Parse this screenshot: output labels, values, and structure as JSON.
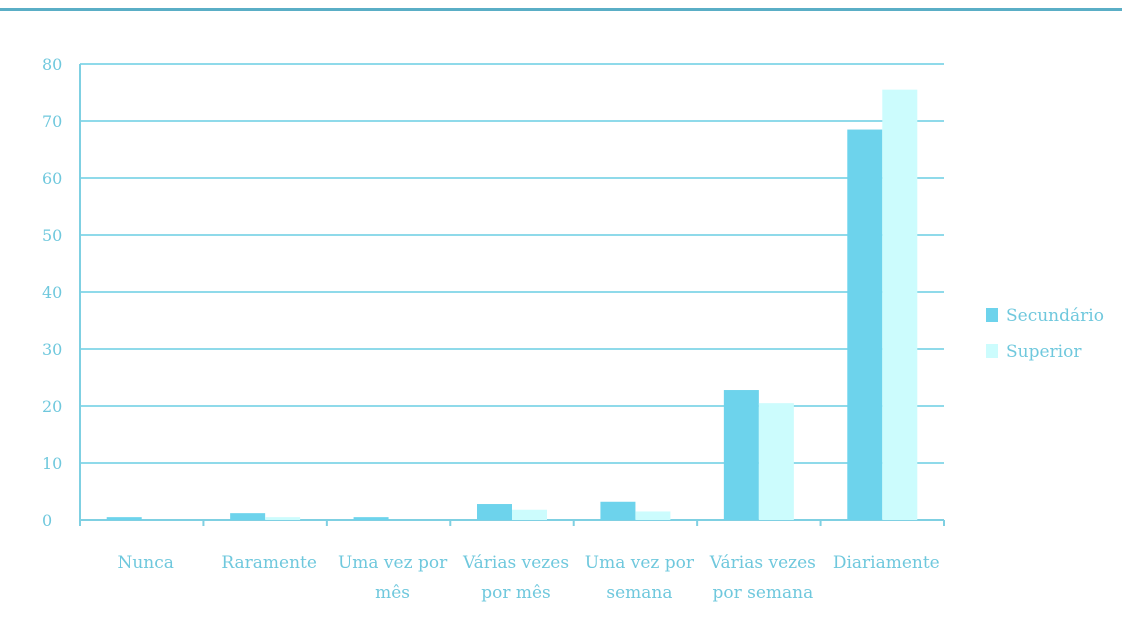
{
  "chart_data": {
    "type": "bar",
    "categories": [
      [
        "Nunca"
      ],
      [
        "Raramente"
      ],
      [
        "Uma vez por",
        "mês"
      ],
      [
        "Várias vezes",
        "por mês"
      ],
      [
        "Uma vez por",
        "semana"
      ],
      [
        "Várias vezes",
        "por semana"
      ],
      [
        "Diariamente"
      ]
    ],
    "series": [
      {
        "name": "Secundário",
        "color": "#6dd3ec",
        "values": [
          0.5,
          1.2,
          0.5,
          2.8,
          3.2,
          22.8,
          68.5
        ]
      },
      {
        "name": "Superior",
        "color": "#ccfcfd",
        "values": [
          0,
          0.5,
          0,
          1.8,
          1.5,
          20.5,
          75.5
        ]
      }
    ],
    "ylim": [
      0,
      80
    ],
    "yticks": [
      0,
      10,
      20,
      30,
      40,
      50,
      60,
      70,
      80
    ],
    "grid": true,
    "legend_position": "right"
  },
  "colors": {
    "axis": "#7fd0e2",
    "grid": "#8fdaea",
    "text": "#6fc8dd",
    "rule": "#5aaec6"
  }
}
